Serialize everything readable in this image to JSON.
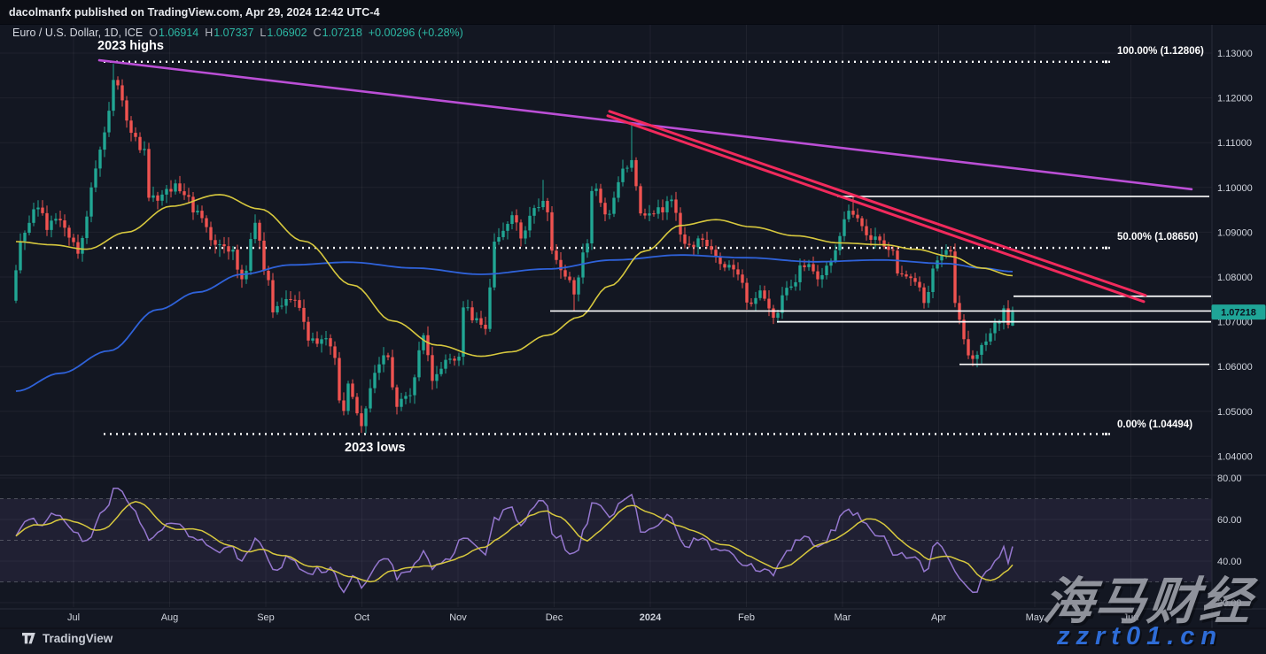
{
  "published_bar": {
    "text": "dacolmanfx published on TradingView.com, Apr 29, 2024 12:42 UTC-4"
  },
  "legend": {
    "symbol": "Euro / U.S. Dollar, 1D, ICE",
    "o_label": "O",
    "o": "1.06914",
    "h_label": "H",
    "h": "1.07337",
    "l_label": "L",
    "l": "1.06902",
    "c_label": "C",
    "c": "1.07218",
    "change": "+0.00296 (+0.28%)"
  },
  "annotations": {
    "highs": "2023 highs",
    "lows": "2023 lows"
  },
  "watermark": {
    "cn": "海马财经",
    "url": "zzrt01.cn"
  },
  "footer": {
    "logo_text": "TradingView"
  },
  "colors": {
    "bg": "#131722",
    "grid": "rgba(255,255,255,0.05)",
    "axis_border": "#2a2e39",
    "axis_text": "#cfd3dc",
    "up": "#21a693",
    "down": "#ef5350",
    "ma_yellow": "#d7c83e",
    "ma_blue": "#2f62d9",
    "rsi_purple": "#9577cf",
    "rsi_yellow": "#d7c83e",
    "rsi_band": "rgba(149,117,205,0.10)",
    "rsi_dashed": "#787b86",
    "magenta_line": "#bb4fd6",
    "pink_line": "#f12a5c",
    "white_line": "#ffffff",
    "badge_bg": "#1fa597",
    "badge_text": "#0b121e"
  },
  "chart_data": {
    "type": "candlestick",
    "title": "Euro / U.S. Dollar, 1D, ICE",
    "last_price": 1.07218,
    "last_candle": {
      "open": 1.06914,
      "high": 1.07337,
      "low": 1.06902,
      "close": 1.07218
    },
    "price_ticks": [
      1.13,
      1.12,
      1.11,
      1.1,
      1.09,
      1.08,
      1.07,
      1.06,
      1.05,
      1.04
    ],
    "month_ticks": [
      {
        "label": "Jul",
        "day": 13
      },
      {
        "label": "Aug",
        "day": 34.7
      },
      {
        "label": "Sep",
        "day": 56.4
      },
      {
        "label": "Oct",
        "day": 78.1
      },
      {
        "label": "Nov",
        "day": 99.8
      },
      {
        "label": "Dec",
        "day": 121.5
      },
      {
        "label": "2024",
        "day": 143.2,
        "year": true
      },
      {
        "label": "Feb",
        "day": 164.9
      },
      {
        "label": "Mar",
        "day": 186.6
      },
      {
        "label": "Apr",
        "day": 208.3
      },
      {
        "label": "May",
        "day": 230
      },
      {
        "label": "Jun",
        "day": 251.7
      }
    ],
    "fib_levels": [
      {
        "label": "100.00% (1.12806)",
        "price": 1.12806
      },
      {
        "label": "50.00% (1.08650)",
        "price": 1.0865
      },
      {
        "label": "0.00% (1.04494)",
        "price": 1.04494
      }
    ],
    "horizontal_lines": [
      {
        "price": 1.098,
        "d1": 185.4,
        "d2": 269.4
      },
      {
        "price": 1.0757,
        "d1": 225.2,
        "d2": 269.8
      },
      {
        "price": 1.0724,
        "d1": 120.6,
        "d2": 269.8
      },
      {
        "price": 1.07,
        "d1": 171.8,
        "d2": 269.8
      },
      {
        "price": 1.0605,
        "d1": 213.0,
        "d2": 269.4
      }
    ],
    "trendlines": [
      {
        "name": "magenta-downtrend",
        "d1": 18.8,
        "p1": 1.1284,
        "d2": 265.4,
        "p2": 1.0996,
        "color": "magenta_line",
        "w": 2.6
      },
      {
        "name": "pink-channel-upper",
        "d1": 134.0,
        "p1": 1.117,
        "d2": 255.0,
        "p2": 1.0759,
        "color": "pink_line",
        "w": 3
      },
      {
        "name": "pink-channel-lower",
        "d1": 133.6,
        "p1": 1.116,
        "d2": 254.6,
        "p2": 1.0745,
        "color": "pink_line",
        "w": 3
      }
    ],
    "candle_anchors": [
      [
        0,
        1.0815
      ],
      [
        1,
        1.088
      ],
      [
        5,
        1.0955
      ],
      [
        7,
        1.0905
      ],
      [
        9,
        1.093
      ],
      [
        11,
        1.091
      ],
      [
        14,
        1.0852
      ],
      [
        15,
        1.0887
      ],
      [
        17,
        1.1
      ],
      [
        20,
        1.1123
      ],
      [
        22,
        1.124
      ],
      [
        23,
        1.1228
      ],
      [
        26,
        1.1122
      ],
      [
        29,
        1.1086
      ],
      [
        30,
        1.0977
      ],
      [
        33,
        1.0984
      ],
      [
        36,
        1.1009
      ],
      [
        41,
        1.0948
      ],
      [
        45,
        1.0872
      ],
      [
        46,
        1.0873
      ],
      [
        49,
        1.0861
      ],
      [
        51,
        1.0795
      ],
      [
        54,
        1.0921
      ],
      [
        57,
        1.0793
      ],
      [
        58,
        1.0721
      ],
      [
        62,
        1.0749
      ],
      [
        64,
        1.0731
      ],
      [
        66,
        1.0658
      ],
      [
        69,
        1.0661
      ],
      [
        71,
        1.0645
      ],
      [
        74,
        1.0501
      ],
      [
        75,
        1.0562
      ],
      [
        78,
        1.0467
      ],
      [
        81,
        1.0586
      ],
      [
        84,
        1.0621
      ],
      [
        86,
        1.051
      ],
      [
        89,
        1.0536
      ],
      [
        92,
        1.067
      ],
      [
        94,
        1.0568
      ],
      [
        97,
        1.0615
      ],
      [
        100,
        1.0622
      ],
      [
        101,
        1.0732
      ],
      [
        104,
        1.0708
      ],
      [
        106,
        1.0684
      ],
      [
        108,
        1.0879
      ],
      [
        112,
        1.0938
      ],
      [
        114,
        1.0886
      ],
      [
        117,
        1.0954
      ],
      [
        119,
        1.097
      ],
      [
        122,
        1.0838
      ],
      [
        125,
        1.0793
      ],
      [
        126,
        1.0761
      ],
      [
        129,
        1.0875
      ],
      [
        130,
        1.0992
      ],
      [
        134,
        1.0941
      ],
      [
        137,
        1.1042
      ],
      [
        139,
        1.1061
      ],
      [
        141,
        1.0942
      ],
      [
        144,
        1.0941
      ],
      [
        148,
        1.0973
      ],
      [
        151,
        1.0874
      ],
      [
        155,
        1.0883
      ],
      [
        158,
        1.0846
      ],
      [
        162,
        1.0817
      ],
      [
        164,
        1.0787
      ],
      [
        165,
        1.0743
      ],
      [
        168,
        1.077
      ],
      [
        171,
        1.0709
      ],
      [
        174,
        1.0776
      ],
      [
        178,
        1.0822
      ],
      [
        182,
        1.0804
      ],
      [
        184,
        1.0836
      ],
      [
        188,
        1.0948
      ],
      [
        189,
        1.0939
      ],
      [
        193,
        1.0883
      ],
      [
        196,
        1.0868
      ],
      [
        198,
        1.0859
      ],
      [
        199,
        1.0808
      ],
      [
        203,
        1.0789
      ],
      [
        205,
        1.0742
      ],
      [
        208,
        1.0837
      ],
      [
        211,
        1.0857
      ],
      [
        212,
        1.0742
      ],
      [
        215,
        1.0625
      ],
      [
        216,
        1.0617
      ],
      [
        219,
        1.0656
      ],
      [
        222,
        1.0698
      ],
      [
        223,
        1.073
      ],
      [
        224,
        1.0693
      ],
      [
        225,
        1.07218
      ]
    ],
    "wick_overrides": [
      {
        "day": 15,
        "low": 1.0834
      },
      {
        "day": 22,
        "high": 1.1276
      },
      {
        "day": 46,
        "low": 1.0845
      },
      {
        "day": 78,
        "low": 1.0452
      },
      {
        "day": 119,
        "high": 1.1017
      },
      {
        "day": 126,
        "low": 1.0724
      },
      {
        "day": 139,
        "high": 1.1139
      },
      {
        "day": 171,
        "low": 1.0695
      },
      {
        "day": 189,
        "high": 1.0981
      },
      {
        "day": 216,
        "low": 1.0601
      }
    ],
    "ma_yellow": [
      [
        0,
        1.0879
      ],
      [
        8,
        1.0872
      ],
      [
        16,
        1.0862
      ],
      [
        25,
        1.09
      ],
      [
        35,
        1.0958
      ],
      [
        46,
        1.0984
      ],
      [
        55,
        1.0952
      ],
      [
        65,
        1.088
      ],
      [
        76,
        1.0782
      ],
      [
        85,
        1.0702
      ],
      [
        95,
        1.0648
      ],
      [
        105,
        1.0623
      ],
      [
        112,
        1.0633
      ],
      [
        120,
        1.067
      ],
      [
        127,
        1.071
      ],
      [
        134,
        1.078
      ],
      [
        142,
        1.0858
      ],
      [
        150,
        1.0915
      ],
      [
        158,
        1.0928
      ],
      [
        166,
        1.0912
      ],
      [
        176,
        1.0892
      ],
      [
        186,
        1.0876
      ],
      [
        196,
        1.0872
      ],
      [
        203,
        1.0862
      ],
      [
        211,
        1.0846
      ],
      [
        218,
        1.082
      ],
      [
        225,
        1.0803
      ]
    ],
    "ma_blue": [
      [
        0,
        1.0545
      ],
      [
        10,
        1.0585
      ],
      [
        21,
        1.0635
      ],
      [
        32,
        1.0727
      ],
      [
        41,
        1.0766
      ],
      [
        51,
        1.0806
      ],
      [
        62,
        1.0827
      ],
      [
        75,
        1.0833
      ],
      [
        90,
        1.082
      ],
      [
        105,
        1.0806
      ],
      [
        120,
        1.0818
      ],
      [
        135,
        1.0838
      ],
      [
        150,
        1.0849
      ],
      [
        165,
        1.0843
      ],
      [
        180,
        1.0834
      ],
      [
        195,
        1.0838
      ],
      [
        210,
        1.083
      ],
      [
        218,
        1.082
      ],
      [
        225,
        1.0812
      ]
    ],
    "rsi": {
      "ticks": [
        80,
        60,
        40,
        20
      ],
      "dashed_levels": [
        70,
        50,
        30
      ],
      "band": [
        30,
        70
      ],
      "anchors": [
        [
          0,
          52
        ],
        [
          3,
          60
        ],
        [
          6,
          57
        ],
        [
          9,
          62
        ],
        [
          13,
          54
        ],
        [
          16,
          50
        ],
        [
          19,
          63
        ],
        [
          23,
          75
        ],
        [
          27,
          64
        ],
        [
          30,
          50
        ],
        [
          33,
          55
        ],
        [
          36,
          58
        ],
        [
          41,
          50
        ],
        [
          46,
          44
        ],
        [
          49,
          47
        ],
        [
          51,
          40
        ],
        [
          54,
          51
        ],
        [
          58,
          36
        ],
        [
          62,
          41
        ],
        [
          66,
          34
        ],
        [
          71,
          37
        ],
        [
          74,
          25
        ],
        [
          76,
          33
        ],
        [
          78,
          27
        ],
        [
          81,
          37
        ],
        [
          84,
          41
        ],
        [
          86,
          31
        ],
        [
          89,
          35
        ],
        [
          92,
          45
        ],
        [
          94,
          36
        ],
        [
          97,
          41
        ],
        [
          101,
          51
        ],
        [
          104,
          47
        ],
        [
          106,
          43
        ],
        [
          108,
          61
        ],
        [
          112,
          66
        ],
        [
          114,
          57
        ],
        [
          117,
          66
        ],
        [
          119,
          69
        ],
        [
          122,
          51
        ],
        [
          126,
          44
        ],
        [
          129,
          58
        ],
        [
          130,
          68
        ],
        [
          134,
          61
        ],
        [
          137,
          69
        ],
        [
          139,
          72
        ],
        [
          141,
          54
        ],
        [
          144,
          56
        ],
        [
          148,
          61
        ],
        [
          151,
          47
        ],
        [
          155,
          51
        ],
        [
          158,
          46
        ],
        [
          162,
          43
        ],
        [
          164,
          38
        ],
        [
          168,
          35
        ],
        [
          171,
          33
        ],
        [
          174,
          45
        ],
        [
          178,
          52
        ],
        [
          182,
          48
        ],
        [
          184,
          55
        ],
        [
          188,
          65
        ],
        [
          189,
          62
        ],
        [
          193,
          55
        ],
        [
          196,
          52
        ],
        [
          199,
          43
        ],
        [
          203,
          42
        ],
        [
          205,
          35
        ],
        [
          208,
          49
        ],
        [
          212,
          35
        ],
        [
          215,
          27
        ],
        [
          216,
          25
        ],
        [
          219,
          35
        ],
        [
          222,
          42
        ],
        [
          223,
          47
        ],
        [
          224,
          39
        ],
        [
          225,
          47
        ]
      ]
    }
  }
}
